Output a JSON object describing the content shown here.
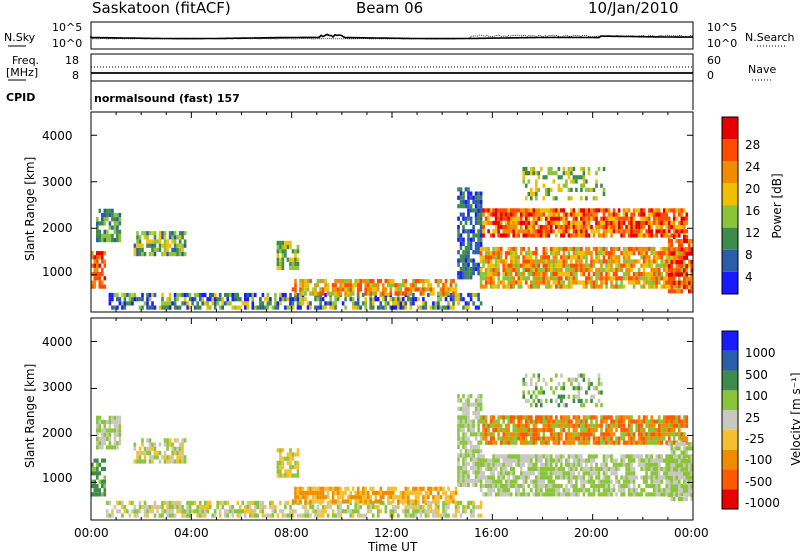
{
  "header": {
    "title": "Saskatoon (fitACF)",
    "beam": "Beam 06",
    "date": "10/Jan/2010"
  },
  "strip_labels": {
    "nsky": "N.Sky",
    "nsearch": "N.Search",
    "freq_line1": "Freq.",
    "freq_line2": "[MHz]",
    "nave": "Nave",
    "cpid": "CPID",
    "cpid_value": "normalsound (fast) 157"
  },
  "colors": {
    "power": [
      "#1a1aff",
      "#2a5ea8",
      "#3e8a4a",
      "#8ac43a",
      "#f0c000",
      "#f08c00",
      "#ff4a00",
      "#e60000"
    ],
    "velocity": [
      "#e60000",
      "#ff5a00",
      "#f08c00",
      "#f5c030",
      "#c8c8c0",
      "#8ac43a",
      "#3e8a4a",
      "#2a5ea8",
      "#1a1aff"
    ]
  },
  "chart_data": [
    {
      "type": "line",
      "title": "N.Sky / N.Search",
      "ylabel_left": "N.Sky",
      "ylabel_right": "N.Search",
      "yticks_left": [
        "10^5",
        "10^0"
      ],
      "yticks_right": [
        "10^5",
        "10^0"
      ],
      "xlim": [
        0,
        24
      ]
    },
    {
      "type": "line",
      "ylabel_left": "Freq. [MHz]",
      "ylabel_right": "Nave",
      "yticks_left": [
        "18",
        "8"
      ],
      "yticks_right": [
        "60",
        "0"
      ],
      "xlim": [
        0,
        24
      ]
    },
    {
      "type": "heatmap",
      "panel": "power",
      "ylabel": "Slant Range [km]",
      "yticks": [
        "1000",
        "2000",
        "3000",
        "4000"
      ],
      "ylim": [
        200,
        4500
      ],
      "xlim": [
        0,
        24
      ],
      "colorbar_label": "Power [dB]",
      "colorbar_ticks": [
        "28",
        "24",
        "20",
        "16",
        "12",
        "8",
        "4"
      ]
    },
    {
      "type": "heatmap",
      "panel": "velocity",
      "ylabel": "Slant Range [km]",
      "yticks": [
        "1000",
        "2000",
        "3000",
        "4000"
      ],
      "ylim": [
        200,
        4500
      ],
      "xlim": [
        0,
        24
      ],
      "colorbar_label": "Velocity [m s⁻¹]",
      "colorbar_ticks": [
        "1000",
        "500",
        "100",
        "25",
        "-25",
        "-100",
        "-500",
        "-1000"
      ],
      "xticks": [
        "00:00",
        "04:00",
        "08:00",
        "12:00",
        "16:00",
        "20:00",
        "00:00"
      ],
      "xlabel": "Time UT"
    }
  ]
}
